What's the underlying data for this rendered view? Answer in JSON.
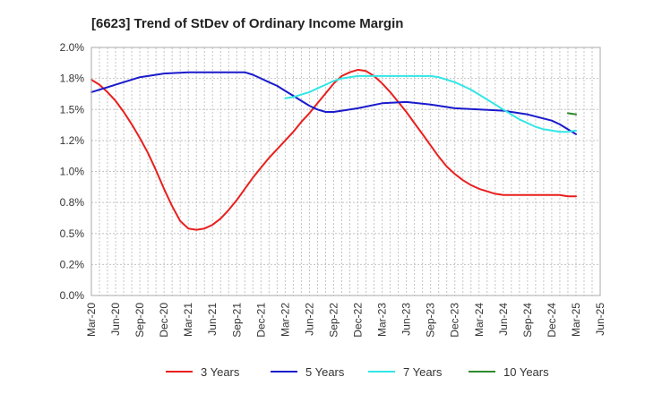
{
  "chart_data": {
    "type": "line",
    "title": "[6623]  Trend of StDev of Ordinary Income Margin",
    "xlabel": "",
    "ylabel": "",
    "x_ticks": [
      "Mar-20",
      "Jun-20",
      "Sep-20",
      "Dec-20",
      "Mar-21",
      "Jun-21",
      "Sep-21",
      "Dec-21",
      "Mar-22",
      "Jun-22",
      "Sep-22",
      "Dec-22",
      "Mar-23",
      "Jun-23",
      "Sep-23",
      "Dec-23",
      "Mar-24",
      "Jun-24",
      "Sep-24",
      "Dec-24",
      "Mar-25",
      "Jun-25"
    ],
    "y_ticks": [
      "0.0%",
      "0.2%",
      "0.5%",
      "0.8%",
      "1.0%",
      "1.2%",
      "1.5%",
      "1.8%",
      "2.0%"
    ],
    "ylim": [
      0,
      2.0
    ],
    "y_tick_step": 0.25,
    "grid": true,
    "legend_position": "bottom",
    "series": [
      {
        "name": "3 Years",
        "color": "#e8201e",
        "x": [
          "Mar-20",
          "Apr-20",
          "May-20",
          "Jun-20",
          "Jul-20",
          "Aug-20",
          "Sep-20",
          "Oct-20",
          "Nov-20",
          "Dec-20",
          "Jan-21",
          "Feb-21",
          "Mar-21",
          "Apr-21",
          "May-21",
          "Jun-21",
          "Jul-21",
          "Aug-21",
          "Sep-21",
          "Oct-21",
          "Nov-21",
          "Dec-21",
          "Jan-22",
          "Feb-22",
          "Mar-22",
          "Apr-22",
          "May-22",
          "Jun-22",
          "Jul-22",
          "Aug-22",
          "Sep-22",
          "Oct-22",
          "Nov-22",
          "Dec-22",
          "Jan-23",
          "Feb-23",
          "Mar-23",
          "Apr-23",
          "May-23",
          "Jun-23",
          "Jul-23",
          "Aug-23",
          "Sep-23",
          "Oct-23",
          "Nov-23",
          "Dec-23",
          "Jan-24",
          "Feb-24",
          "Mar-24",
          "Apr-24",
          "May-24",
          "Jun-24",
          "Jul-24",
          "Aug-24",
          "Sep-24",
          "Oct-24",
          "Nov-24",
          "Dec-24",
          "Jan-25",
          "Feb-25",
          "Mar-25"
        ],
        "values": [
          1.74,
          1.7,
          1.64,
          1.57,
          1.48,
          1.38,
          1.27,
          1.15,
          1.01,
          0.86,
          0.72,
          0.6,
          0.54,
          0.53,
          0.54,
          0.57,
          0.62,
          0.69,
          0.77,
          0.86,
          0.95,
          1.03,
          1.11,
          1.18,
          1.25,
          1.32,
          1.4,
          1.47,
          1.55,
          1.63,
          1.71,
          1.77,
          1.8,
          1.82,
          1.81,
          1.77,
          1.71,
          1.64,
          1.56,
          1.48,
          1.39,
          1.3,
          1.21,
          1.12,
          1.04,
          0.98,
          0.93,
          0.89,
          0.86,
          0.84,
          0.82,
          0.81,
          0.81,
          0.81,
          0.81,
          0.81,
          0.81,
          0.81,
          0.81,
          0.8,
          0.8
        ]
      },
      {
        "name": "5 Years",
        "color": "#1a1acc",
        "x": [
          "Mar-20",
          "Jun-20",
          "Sep-20",
          "Dec-20",
          "Mar-21",
          "Jun-21",
          "Sep-21",
          "Oct-21",
          "Nov-21",
          "Dec-21",
          "Jan-22",
          "Feb-22",
          "Mar-22",
          "Apr-22",
          "May-22",
          "Jun-22",
          "Jul-22",
          "Aug-22",
          "Sep-22",
          "Dec-22",
          "Mar-23",
          "Jun-23",
          "Sep-23",
          "Dec-23",
          "Mar-24",
          "Jun-24",
          "Sep-24",
          "Dec-24",
          "Jan-25",
          "Feb-25",
          "Mar-25"
        ],
        "values": [
          1.64,
          1.7,
          1.76,
          1.79,
          1.8,
          1.8,
          1.8,
          1.8,
          1.78,
          1.75,
          1.72,
          1.69,
          1.65,
          1.61,
          1.57,
          1.53,
          1.5,
          1.48,
          1.48,
          1.51,
          1.55,
          1.56,
          1.54,
          1.51,
          1.5,
          1.49,
          1.46,
          1.41,
          1.38,
          1.34,
          1.3
        ]
      },
      {
        "name": "7 Years",
        "color": "#33e6e6",
        "x": [
          "Mar-22",
          "Apr-22",
          "May-22",
          "Jun-22",
          "Jul-22",
          "Aug-22",
          "Sep-22",
          "Oct-22",
          "Nov-22",
          "Dec-22",
          "Jan-23",
          "Feb-23",
          "Mar-23",
          "Jun-23",
          "Sep-23",
          "Oct-23",
          "Nov-23",
          "Dec-23",
          "Jan-24",
          "Feb-24",
          "Mar-24",
          "Apr-24",
          "May-24",
          "Jun-24",
          "Jul-24",
          "Aug-24",
          "Sep-24",
          "Oct-24",
          "Nov-24",
          "Dec-24",
          "Jan-25",
          "Feb-25",
          "Mar-25"
        ],
        "values": [
          1.59,
          1.6,
          1.62,
          1.64,
          1.67,
          1.7,
          1.73,
          1.75,
          1.76,
          1.77,
          1.77,
          1.77,
          1.77,
          1.77,
          1.77,
          1.76,
          1.74,
          1.72,
          1.69,
          1.66,
          1.62,
          1.58,
          1.54,
          1.5,
          1.46,
          1.42,
          1.39,
          1.36,
          1.34,
          1.33,
          1.32,
          1.32,
          1.33
        ]
      },
      {
        "name": "10 Years",
        "color": "#2e8b2e",
        "x": [
          "Feb-25",
          "Mar-25"
        ],
        "values": [
          1.47,
          1.46
        ]
      }
    ]
  }
}
